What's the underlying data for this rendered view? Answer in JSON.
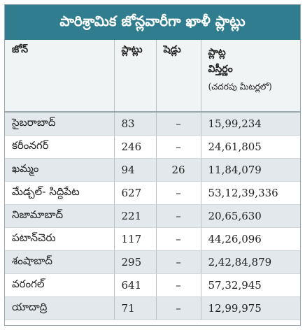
{
  "title": "పారిశ్రామిక జోన్లవారీగా ఖాళీ ప్లాట్లు",
  "table": {
    "headers": {
      "zone": "జోన్",
      "plots": "ప్లాట్లు",
      "sheds": "షెడ్లు",
      "area": [
        "ప్లాట్ల",
        "విస్తీర్ణం"
      ],
      "area_unit": "(చదరపు మీటర్లలో)"
    },
    "rows": [
      [
        "సైబరాబాద్",
        "83",
        "–",
        "15,99,234"
      ],
      [
        "కరీంనగర్",
        "246",
        "–",
        "24,61,805"
      ],
      [
        "ఖమ్మం",
        "94",
        "26",
        "11,84,079"
      ],
      [
        "మేడ్చల్‌- సిద్దిపేట",
        "627",
        "–",
        "53,12,39,336"
      ],
      [
        "నిజామాబాద్",
        "221",
        "–",
        "20,65,630"
      ],
      [
        "పటాన్‌చెరు",
        "117",
        "–",
        "44,26,096"
      ],
      [
        "శంషాబాద్",
        "295",
        "–",
        "2,42,84,879"
      ],
      [
        "వరంగల్",
        "641",
        "–",
        "57,32,945"
      ],
      [
        "యాదాద్రి",
        "71",
        "–",
        "12,99,975"
      ]
    ]
  }
}
